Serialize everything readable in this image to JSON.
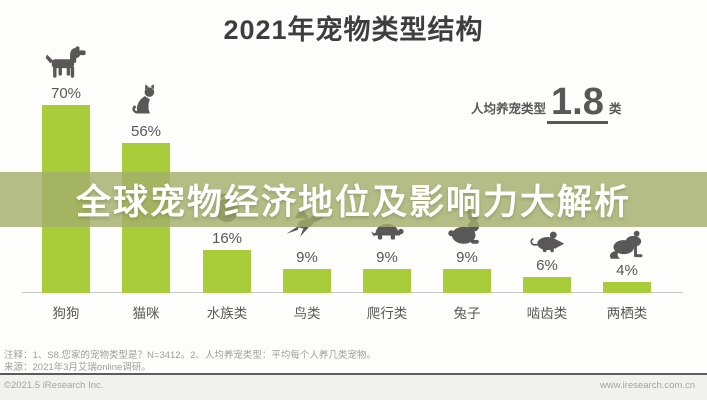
{
  "title": "2021年宠物类型结构",
  "stat": {
    "label": "人均养宠类型",
    "value": "1.8",
    "unit": "类"
  },
  "banner": {
    "text": "全球宠物经济地位及影响力大解析"
  },
  "chart_data": {
    "type": "bar",
    "title": "2021年宠物类型结构",
    "categories": [
      "狗狗",
      "猫咪",
      "水族类",
      "鸟类",
      "爬行类",
      "兔子",
      "啮齿类",
      "两栖类"
    ],
    "values": [
      70,
      56,
      16,
      9,
      9,
      9,
      6,
      4
    ],
    "value_labels": [
      "70%",
      "56%",
      "16%",
      "9%",
      "9%",
      "9%",
      "6%",
      "4%"
    ],
    "icons": [
      "dog-icon",
      "cat-icon",
      "fishbowl-icon",
      "bird-icon",
      "turtle-icon",
      "rabbit-icon",
      "mouse-icon",
      "frog-icon"
    ],
    "unit": "%",
    "ylim": [
      0,
      100
    ],
    "grid": false,
    "annotation": "人均养宠类型 1.8 类",
    "bar_color": "#a8cc3a",
    "icon_color": "#595757"
  },
  "colors": {
    "bar": "#a8cc3a",
    "icon_gray": "#595757",
    "banner_bg": "#a4af6b",
    "banner_text": "#ffffff",
    "title_text": "#3e3e40",
    "note_gray": "#9d9d9d"
  },
  "footer": {
    "note1": "注释：1、S8.您家的宠物类型是？N=3412。2、人均养宠类型：平均每个人养几类宠物。",
    "source": "来源：2021年3月艾瑞online调研。",
    "copyright": "©2021.5 iResearch Inc.",
    "website": "www.iresearch.com.cn"
  }
}
